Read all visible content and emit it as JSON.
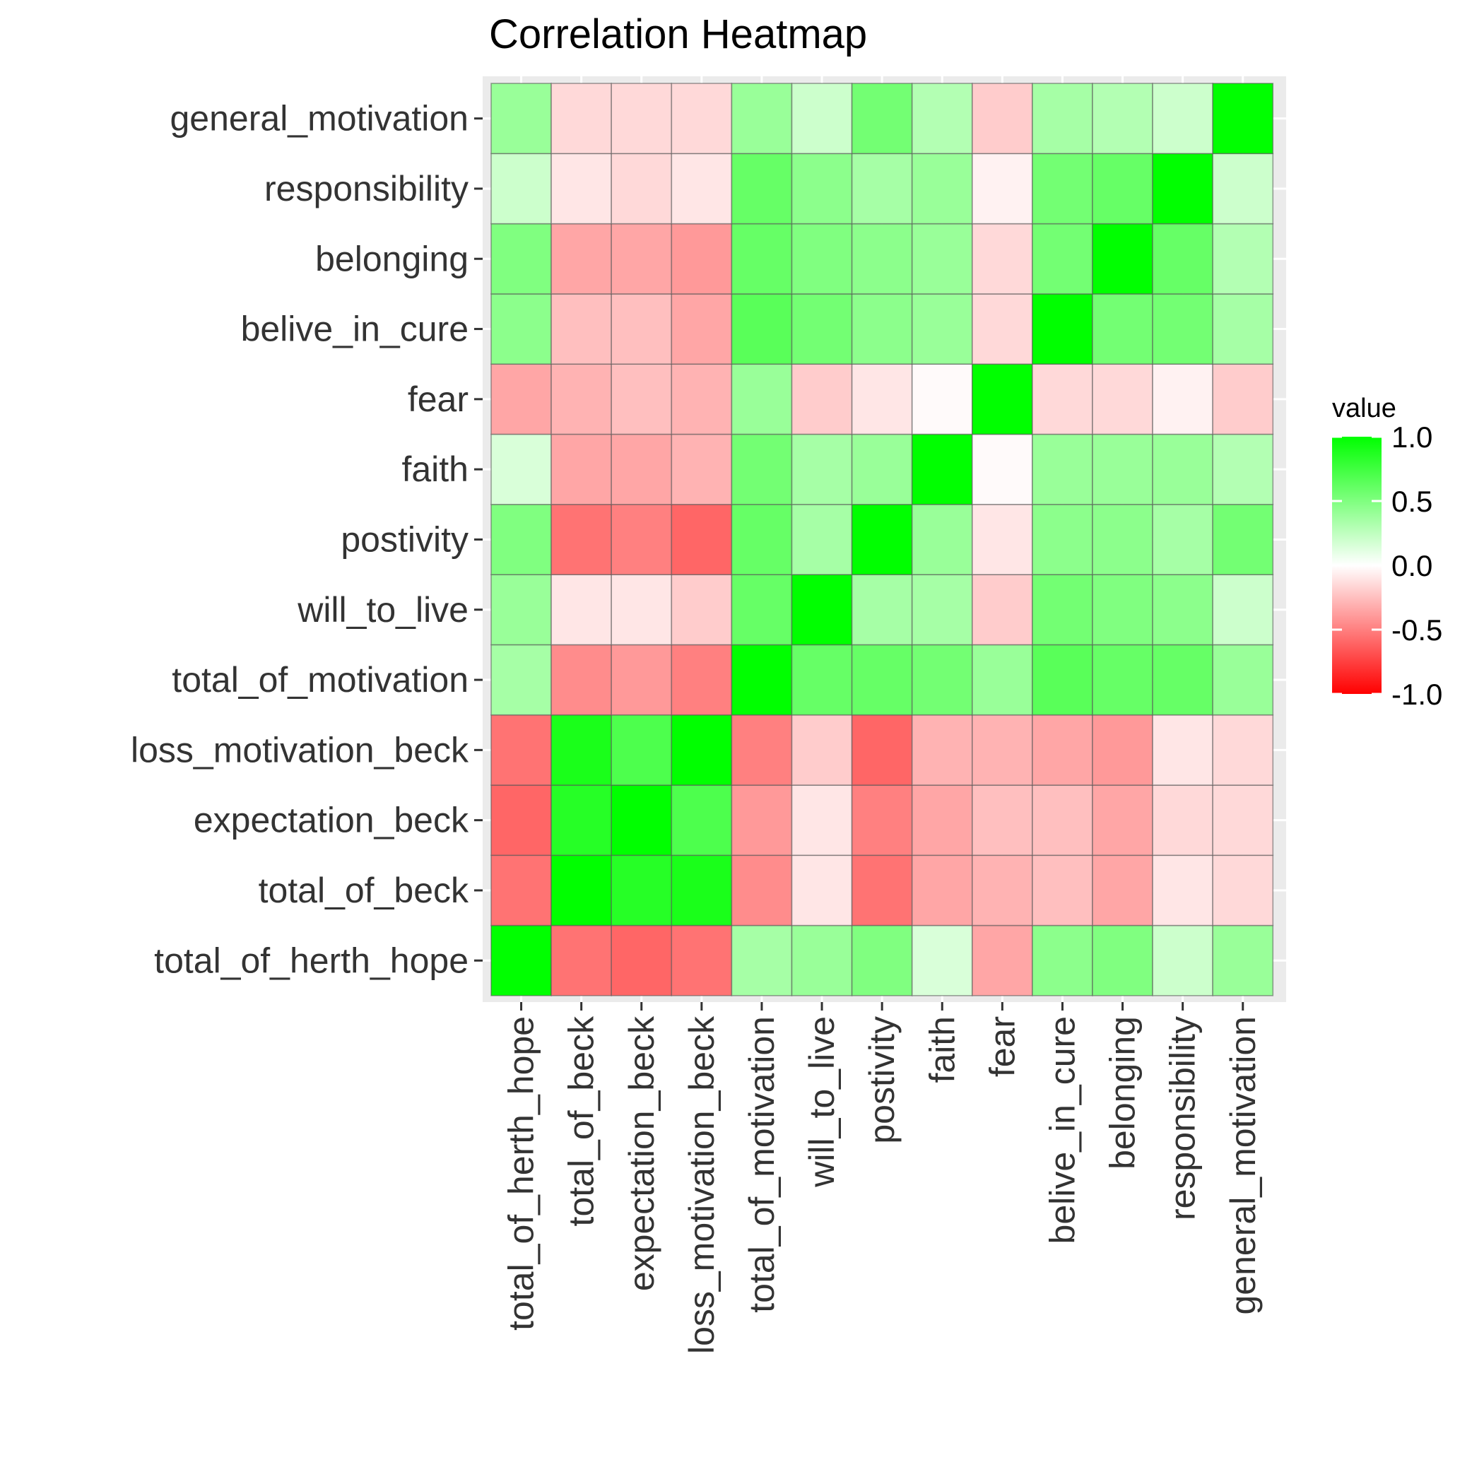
{
  "chart_data": {
    "type": "heatmap",
    "title": "Correlation Heatmap",
    "xlabel": "",
    "ylabel": "",
    "variables": [
      "total_of_herth_hope",
      "total_of_beck",
      "expectation_beck",
      "loss_motivation_beck",
      "total_of_motivation",
      "will_to_live",
      "postivity",
      "faith",
      "fear",
      "belive_in_cure",
      "belonging",
      "responsibility",
      "general_motivation"
    ],
    "matrix": [
      [
        1.0,
        -0.55,
        -0.6,
        -0.55,
        0.35,
        0.4,
        0.5,
        0.15,
        -0.35,
        0.45,
        0.5,
        0.2,
        0.4
      ],
      [
        -0.55,
        1.0,
        0.85,
        0.9,
        -0.45,
        -0.1,
        -0.55,
        -0.35,
        -0.3,
        -0.25,
        -0.35,
        -0.1,
        -0.15
      ],
      [
        -0.6,
        0.85,
        1.0,
        0.7,
        -0.4,
        -0.1,
        -0.5,
        -0.35,
        -0.25,
        -0.25,
        -0.35,
        -0.15,
        -0.15
      ],
      [
        -0.55,
        0.9,
        0.7,
        1.0,
        -0.5,
        -0.2,
        -0.6,
        -0.3,
        -0.3,
        -0.35,
        -0.4,
        -0.1,
        -0.15
      ],
      [
        0.35,
        -0.45,
        -0.4,
        -0.5,
        1.0,
        0.6,
        0.6,
        0.55,
        0.4,
        0.65,
        0.6,
        0.6,
        0.4
      ],
      [
        0.4,
        -0.1,
        -0.1,
        -0.2,
        0.6,
        1.0,
        0.35,
        0.35,
        -0.2,
        0.55,
        0.5,
        0.45,
        0.2
      ],
      [
        0.5,
        -0.55,
        -0.5,
        -0.6,
        0.6,
        0.35,
        1.0,
        0.4,
        -0.1,
        0.45,
        0.45,
        0.35,
        0.55
      ],
      [
        0.15,
        -0.35,
        -0.35,
        -0.3,
        0.55,
        0.35,
        0.4,
        1.0,
        -0.02,
        0.4,
        0.4,
        0.4,
        0.3
      ],
      [
        -0.35,
        -0.3,
        -0.25,
        -0.3,
        0.4,
        -0.2,
        -0.1,
        -0.02,
        1.0,
        -0.15,
        -0.15,
        -0.05,
        -0.2
      ],
      [
        0.45,
        -0.25,
        -0.25,
        -0.35,
        0.65,
        0.55,
        0.45,
        0.4,
        -0.15,
        1.0,
        0.55,
        0.55,
        0.35
      ],
      [
        0.5,
        -0.35,
        -0.35,
        -0.4,
        0.6,
        0.5,
        0.45,
        0.4,
        -0.15,
        0.55,
        1.0,
        0.6,
        0.3
      ],
      [
        0.2,
        -0.1,
        -0.15,
        -0.1,
        0.6,
        0.45,
        0.35,
        0.4,
        -0.05,
        0.55,
        0.6,
        1.0,
        0.2
      ],
      [
        0.4,
        -0.15,
        -0.15,
        -0.15,
        0.4,
        0.2,
        0.55,
        0.3,
        -0.2,
        0.35,
        0.3,
        0.2,
        1.0
      ]
    ],
    "color_scale": {
      "low": "#FF0000",
      "mid": "#FFFFFF",
      "high": "#00FF00",
      "limits": [
        -1,
        1
      ]
    },
    "legend": {
      "title": "value",
      "breaks": [
        1.0,
        0.5,
        0.0,
        -0.5,
        -1.0
      ],
      "break_labels": [
        "1.0",
        "0.5",
        "0.0",
        "-0.5",
        "-1.0"
      ],
      "position": "right"
    },
    "panel_background": "#EBEBEB",
    "grid": true
  }
}
